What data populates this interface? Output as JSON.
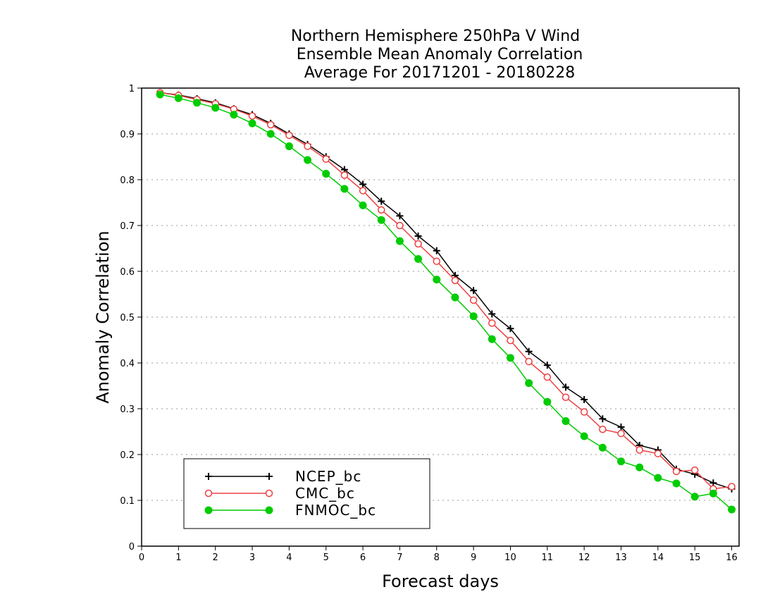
{
  "chart_data": {
    "type": "line",
    "title_lines": [
      "Northern Hemisphere 250hPa V Wind",
      "Ensemble Mean Anomaly Correlation",
      "Average For 20171201 - 20180228"
    ],
    "xlabel": "Forecast days",
    "ylabel": "Anomaly Correlation",
    "xlim": [
      0,
      16.2
    ],
    "ylim": [
      0,
      1
    ],
    "x_ticks": [
      "0",
      "1",
      "2",
      "3",
      "4",
      "5",
      "6",
      "7",
      "8",
      "9",
      "10",
      "11",
      "12",
      "13",
      "14",
      "15",
      "16"
    ],
    "y_ticks": [
      "0",
      "0.1",
      "0.2",
      "0.3",
      "0.4",
      "0.5",
      "0.6",
      "0.7",
      "0.8",
      "0.9",
      "1"
    ],
    "grid": "horizontal dotted",
    "legend_position": "bottom-left",
    "x": [
      0.5,
      1,
      1.5,
      2,
      2.5,
      3,
      3.5,
      4,
      4.5,
      5,
      5.5,
      6,
      6.5,
      7,
      7.5,
      8,
      8.5,
      9,
      9.5,
      10,
      10.5,
      11,
      11.5,
      12,
      12.5,
      13,
      13.5,
      14,
      14.5,
      15,
      15.5,
      16
    ],
    "series": [
      {
        "name": "NCEP_bc",
        "color": "#000000",
        "marker": "plus",
        "values": [
          0.99,
          0.985,
          0.977,
          0.968,
          0.955,
          0.942,
          0.923,
          0.9,
          0.877,
          0.85,
          0.822,
          0.79,
          0.753,
          0.721,
          0.677,
          0.645,
          0.591,
          0.558,
          0.507,
          0.475,
          0.425,
          0.395,
          0.347,
          0.32,
          0.278,
          0.26,
          0.22,
          0.21,
          0.168,
          0.157,
          0.138,
          0.125
        ]
      },
      {
        "name": "CMC_bc",
        "color": "#ee4040",
        "marker": "open-circle",
        "values": [
          0.99,
          0.984,
          0.975,
          0.966,
          0.954,
          0.939,
          0.92,
          0.897,
          0.873,
          0.845,
          0.81,
          0.776,
          0.734,
          0.7,
          0.66,
          0.622,
          0.58,
          0.537,
          0.487,
          0.449,
          0.403,
          0.369,
          0.325,
          0.293,
          0.255,
          0.246,
          0.21,
          0.202,
          0.163,
          0.166,
          0.125,
          0.13
        ]
      },
      {
        "name": "FNMOC_bc",
        "color": "#00cc00",
        "marker": "filled-circle",
        "values": [
          0.986,
          0.978,
          0.968,
          0.957,
          0.942,
          0.923,
          0.9,
          0.873,
          0.843,
          0.813,
          0.78,
          0.744,
          0.712,
          0.666,
          0.627,
          0.582,
          0.543,
          0.502,
          0.452,
          0.411,
          0.356,
          0.315,
          0.273,
          0.24,
          0.215,
          0.185,
          0.172,
          0.149,
          0.137,
          0.108,
          0.115,
          0.08
        ]
      }
    ]
  }
}
